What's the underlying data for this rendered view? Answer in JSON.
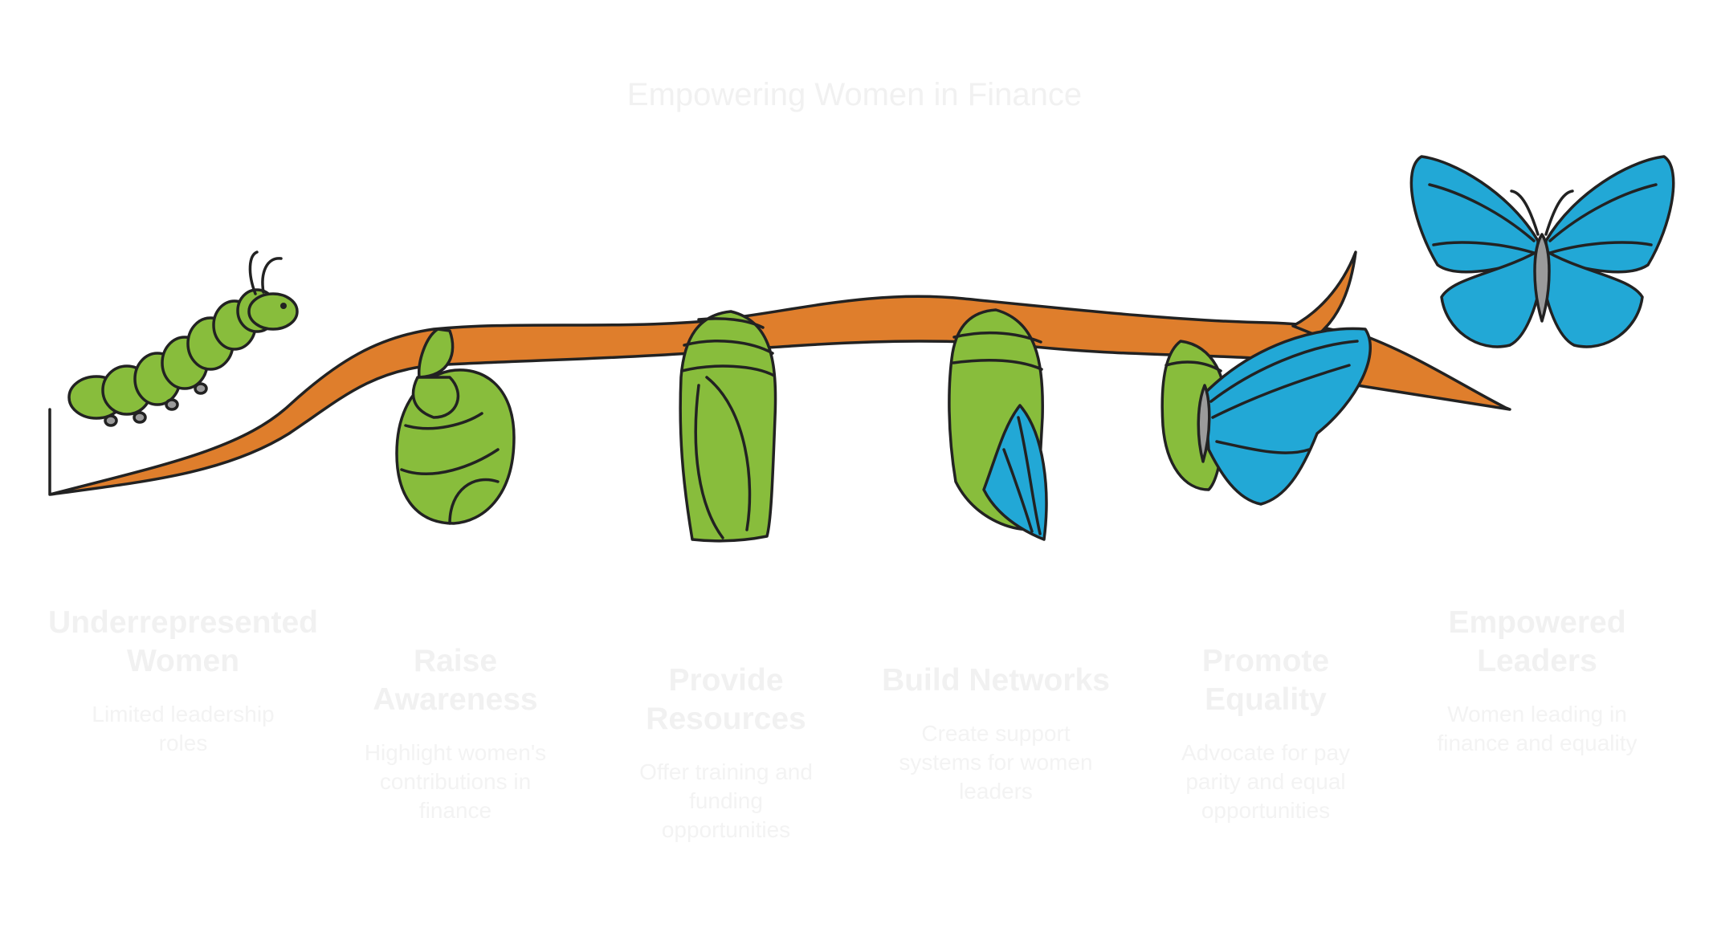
{
  "title": "Empowering Women in Finance",
  "stages": [
    {
      "title_lines": [
        "Underrepresented",
        "Women"
      ],
      "desc_lines": [
        "Limited leadership",
        "roles"
      ]
    },
    {
      "title_lines": [
        "Raise",
        "Awareness"
      ],
      "desc_lines": [
        "Highlight women's",
        "contributions in",
        "finance"
      ]
    },
    {
      "title_lines": [
        "Provide",
        "Resources"
      ],
      "desc_lines": [
        "Offer training and",
        "funding",
        "opportunities"
      ]
    },
    {
      "title_lines": [
        "Build Networks"
      ],
      "desc_lines": [
        "Create support",
        "systems for women",
        "leaders"
      ]
    },
    {
      "title_lines": [
        "Promote",
        "Equality"
      ],
      "desc_lines": [
        "Advocate for pay",
        "parity and equal",
        "opportunities"
      ]
    },
    {
      "title_lines": [
        "Empowered",
        "Leaders"
      ],
      "desc_lines": [
        "Women leading in",
        "finance and equality"
      ]
    }
  ],
  "colors": {
    "branch": "#df7e2c",
    "body_green": "#88bd3c",
    "wing_blue": "#22a8d6",
    "outline": "#222222",
    "faint_text": "#f1f1f1"
  },
  "icons": [
    "caterpillar-icon",
    "curled-pupa-icon",
    "chrysalis-icon",
    "opening-chrysalis-icon",
    "emerging-butterfly-icon",
    "butterfly-icon"
  ]
}
